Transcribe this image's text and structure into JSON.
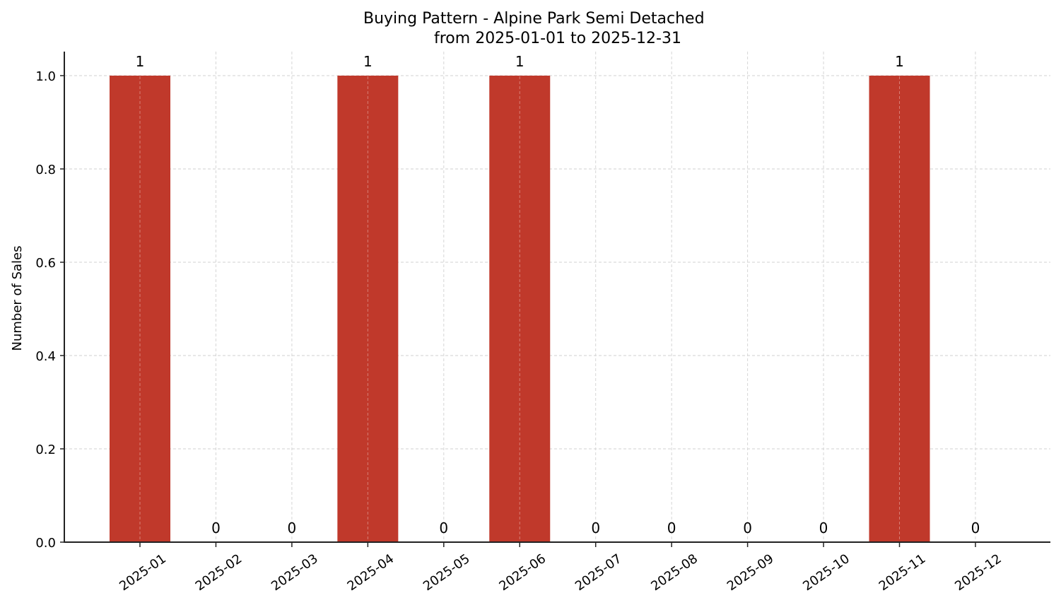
{
  "chart_data": {
    "type": "bar",
    "title": "Buying Pattern - Alpine Park Semi Detached",
    "subtitle": "from 2025-01-01 to 2025-12-31",
    "xlabel": "",
    "ylabel": "Number of Sales",
    "categories": [
      "2025-01",
      "2025-02",
      "2025-03",
      "2025-04",
      "2025-05",
      "2025-06",
      "2025-07",
      "2025-08",
      "2025-09",
      "2025-10",
      "2025-11",
      "2025-12"
    ],
    "values": [
      1,
      0,
      0,
      1,
      0,
      1,
      0,
      0,
      0,
      0,
      1,
      0
    ],
    "data_labels": [
      "1",
      "0",
      "0",
      "1",
      "0",
      "1",
      "0",
      "0",
      "0",
      "0",
      "1",
      "0"
    ],
    "ylim": [
      0,
      1.05
    ],
    "yticks": [
      "0.0",
      "0.2",
      "0.4",
      "0.6",
      "0.8",
      "1.0"
    ],
    "grid": true,
    "legend": null,
    "bar_color": "#c0392b"
  }
}
